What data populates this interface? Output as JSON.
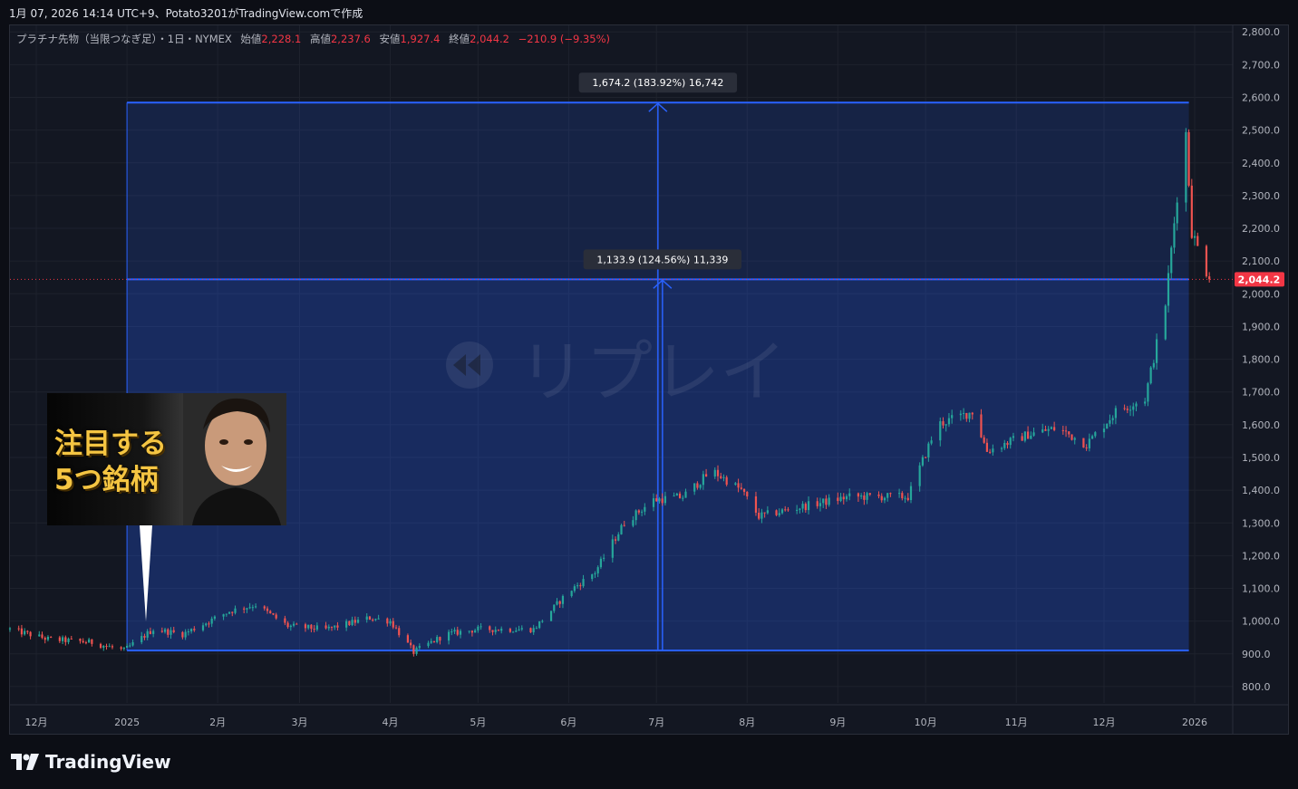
{
  "caption": "1月 07, 2026 14:14 UTC+9、Potato3201がTradingView.comで作成",
  "legend": {
    "symbol": "プラチナ先物（当限つなぎ足）・1日・NYMEX",
    "open_label": "始値",
    "open": "2,228.1",
    "high_label": "高値",
    "high": "2,237.6",
    "low_label": "安値",
    "low": "1,927.4",
    "close_label": "終値",
    "close": "2,044.2",
    "change": "−210.9 (−9.35%)"
  },
  "brand": "TradingView",
  "watermark": "リプレイ",
  "thumbnail_text": "注目する\n5つ銘柄",
  "colors": {
    "up": "#26a69a",
    "down": "#ef5350",
    "measure": "#2962ff",
    "price_tag": "#f23645",
    "background": "#131722"
  },
  "chart_data": {
    "type": "candlestick",
    "ylim": [
      750,
      2820
    ],
    "y_ticks": [
      "2,800.0",
      "2,700.0",
      "2,600.0",
      "2,500.0",
      "2,400.0",
      "2,300.0",
      "2,200.0",
      "2,100.0",
      "2,000.0",
      "1,900.0",
      "1,800.0",
      "1,700.0",
      "1,600.0",
      "1,500.0",
      "1,400.0",
      "1,300.0",
      "1,200.0",
      "1,100.0",
      "1,000.0",
      "900.0",
      "800.0"
    ],
    "x_ticks": [
      "12月",
      "2025",
      "2月",
      "3月",
      "4月",
      "5月",
      "6月",
      "7月",
      "8月",
      "9月",
      "10月",
      "11月",
      "12月",
      "2026"
    ],
    "x_tick_dates": [
      "2024-12-01",
      "2025-01-01",
      "2025-02-01",
      "2025-03-01",
      "2025-04-01",
      "2025-05-01",
      "2025-06-01",
      "2025-07-01",
      "2025-08-01",
      "2025-09-01",
      "2025-10-01",
      "2025-11-01",
      "2025-12-01",
      "2026-01-01"
    ],
    "x_range": [
      "2024-11-22",
      "2026-01-14"
    ],
    "last_price": 2044.2,
    "last_price_label": "2,044.2",
    "measure": {
      "start_date": "2025-01-01",
      "end_date": "2025-12-30",
      "base_price": 910,
      "top_price": 2584.2,
      "mid_price": 2044.2,
      "top_label": "1,674.2 (183.92%) 16,742",
      "mid_label": "1,133.9 (124.56%) 11,339"
    },
    "close_path": [
      [
        "2024-11-22",
        975
      ],
      [
        "2024-12-05",
        945
      ],
      [
        "2024-12-20",
        935
      ],
      [
        "2024-12-31",
        910
      ],
      [
        "2025-01-10",
        975
      ],
      [
        "2025-01-20",
        960
      ],
      [
        "2025-02-05",
        1030
      ],
      [
        "2025-02-14",
        1050
      ],
      [
        "2025-02-25",
        985
      ],
      [
        "2025-03-10",
        975
      ],
      [
        "2025-03-25",
        1010
      ],
      [
        "2025-04-01",
        1000
      ],
      [
        "2025-04-09",
        905
      ],
      [
        "2025-04-20",
        960
      ],
      [
        "2025-05-01",
        975
      ],
      [
        "2025-05-20",
        975
      ],
      [
        "2025-06-01",
        1090
      ],
      [
        "2025-06-10",
        1150
      ],
      [
        "2025-06-20",
        1300
      ],
      [
        "2025-06-30",
        1370
      ],
      [
        "2025-07-10",
        1380
      ],
      [
        "2025-07-20",
        1460
      ],
      [
        "2025-07-30",
        1400
      ],
      [
        "2025-08-05",
        1320
      ],
      [
        "2025-08-20",
        1350
      ],
      [
        "2025-09-05",
        1380
      ],
      [
        "2025-09-25",
        1380
      ],
      [
        "2025-10-05",
        1600
      ],
      [
        "2025-10-17",
        1640
      ],
      [
        "2025-10-22",
        1520
      ],
      [
        "2025-11-05",
        1570
      ],
      [
        "2025-11-15",
        1590
      ],
      [
        "2025-11-25",
        1540
      ],
      [
        "2025-12-05",
        1640
      ],
      [
        "2025-12-15",
        1680
      ],
      [
        "2025-12-22",
        1970
      ],
      [
        "2025-12-26",
        2300
      ],
      [
        "2025-12-29",
        2490
      ],
      [
        "2025-12-31",
        2190
      ],
      [
        "2026-01-06",
        2044.2
      ]
    ]
  }
}
